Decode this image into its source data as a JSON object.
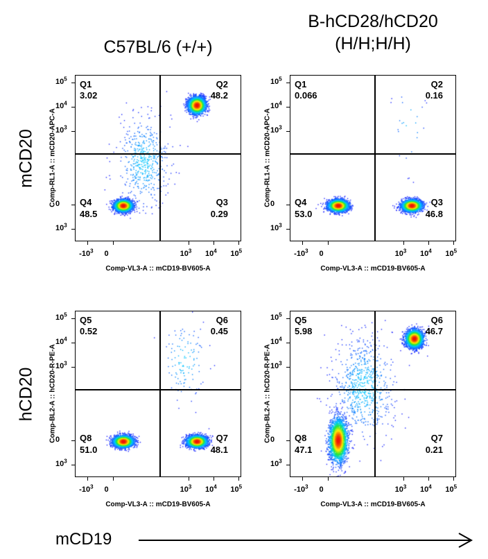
{
  "columns": [
    "C57BL/6 (+/+)",
    "B-hCD28/hCD20\n(H/H;H/H)"
  ],
  "row_labels": [
    "mCD20",
    "hCD20"
  ],
  "footer_label": "mCD19",
  "ticks": {
    "x": [
      "-10^3",
      "0",
      "10^3",
      "10^4",
      "10^5"
    ],
    "y": [
      "10^5",
      "10^4",
      "10^3",
      "0",
      "10^3"
    ]
  },
  "chart_data": [
    {
      "type": "scatter",
      "title": "",
      "xlabel": "Comp-VL3-A :: mCD19-BV605-A",
      "ylabel": "Comp-RL1-A :: mCD20-APC-A",
      "quadrants": [
        {
          "name": "Q1",
          "value": "3.02"
        },
        {
          "name": "Q2",
          "value": "48.2"
        },
        {
          "name": "Q4",
          "value": "48.5"
        },
        {
          "name": "Q3",
          "value": "0.29"
        }
      ],
      "populations": [
        {
          "cx": 0.38,
          "cy": 0.0,
          "sx": 0.18,
          "sy": 0.12,
          "n": 2600
        },
        {
          "cx": 3.3,
          "cy": 4.1,
          "sx": 0.17,
          "sy": 0.17,
          "n": 2600
        },
        {
          "cx": 1.2,
          "cy": 1.8,
          "sx": 0.5,
          "sy": 0.9,
          "n": 500
        }
      ]
    },
    {
      "type": "scatter",
      "title": "",
      "xlabel": "Comp-VL3-A :: mCD19-BV605-A",
      "ylabel": "Comp-RL1-A :: mCD20-APC-A",
      "quadrants": [
        {
          "name": "Q1",
          "value": "0.066"
        },
        {
          "name": "Q2",
          "value": "0.16"
        },
        {
          "name": "Q4",
          "value": "53.0"
        },
        {
          "name": "Q3",
          "value": "46.8"
        }
      ],
      "populations": [
        {
          "cx": 0.38,
          "cy": 0.0,
          "sx": 0.2,
          "sy": 0.12,
          "n": 2800
        },
        {
          "cx": 3.3,
          "cy": 0.0,
          "sx": 0.2,
          "sy": 0.12,
          "n": 2500
        },
        {
          "cx": 3.2,
          "cy": 3.3,
          "sx": 0.3,
          "sy": 0.8,
          "n": 25
        }
      ]
    },
    {
      "type": "scatter",
      "title": "",
      "xlabel": "Comp-VL3-A :: mCD19-BV605-A",
      "ylabel": "Comp-BL2-A :: hCD20-R-PE-A",
      "quadrants": [
        {
          "name": "Q5",
          "value": "0.52"
        },
        {
          "name": "Q6",
          "value": "0.45"
        },
        {
          "name": "Q8",
          "value": "51.0"
        },
        {
          "name": "Q7",
          "value": "48.1"
        }
      ],
      "populations": [
        {
          "cx": 0.38,
          "cy": 0.0,
          "sx": 0.2,
          "sy": 0.12,
          "n": 2800
        },
        {
          "cx": 3.3,
          "cy": 0.0,
          "sx": 0.2,
          "sy": 0.12,
          "n": 2600
        },
        {
          "cx": 2.8,
          "cy": 3.3,
          "sx": 0.45,
          "sy": 0.8,
          "n": 120
        }
      ]
    },
    {
      "type": "scatter",
      "title": "",
      "xlabel": "Comp-VL3-A :: mCD19-BV605-A",
      "ylabel": "Comp-BL2-A :: hCD20-R-PE-A",
      "quadrants": [
        {
          "name": "Q5",
          "value": "5.98"
        },
        {
          "name": "Q6",
          "value": "46.7"
        },
        {
          "name": "Q8",
          "value": "47.1"
        },
        {
          "name": "Q7",
          "value": "0.21"
        }
      ],
      "populations": [
        {
          "cx": 0.38,
          "cy": 0.05,
          "sx": 0.18,
          "sy": 0.45,
          "n": 2600
        },
        {
          "cx": 3.4,
          "cy": 4.2,
          "sx": 0.17,
          "sy": 0.18,
          "n": 2600
        },
        {
          "cx": 1.4,
          "cy": 2.2,
          "sx": 0.6,
          "sy": 1.0,
          "n": 700
        }
      ]
    }
  ]
}
